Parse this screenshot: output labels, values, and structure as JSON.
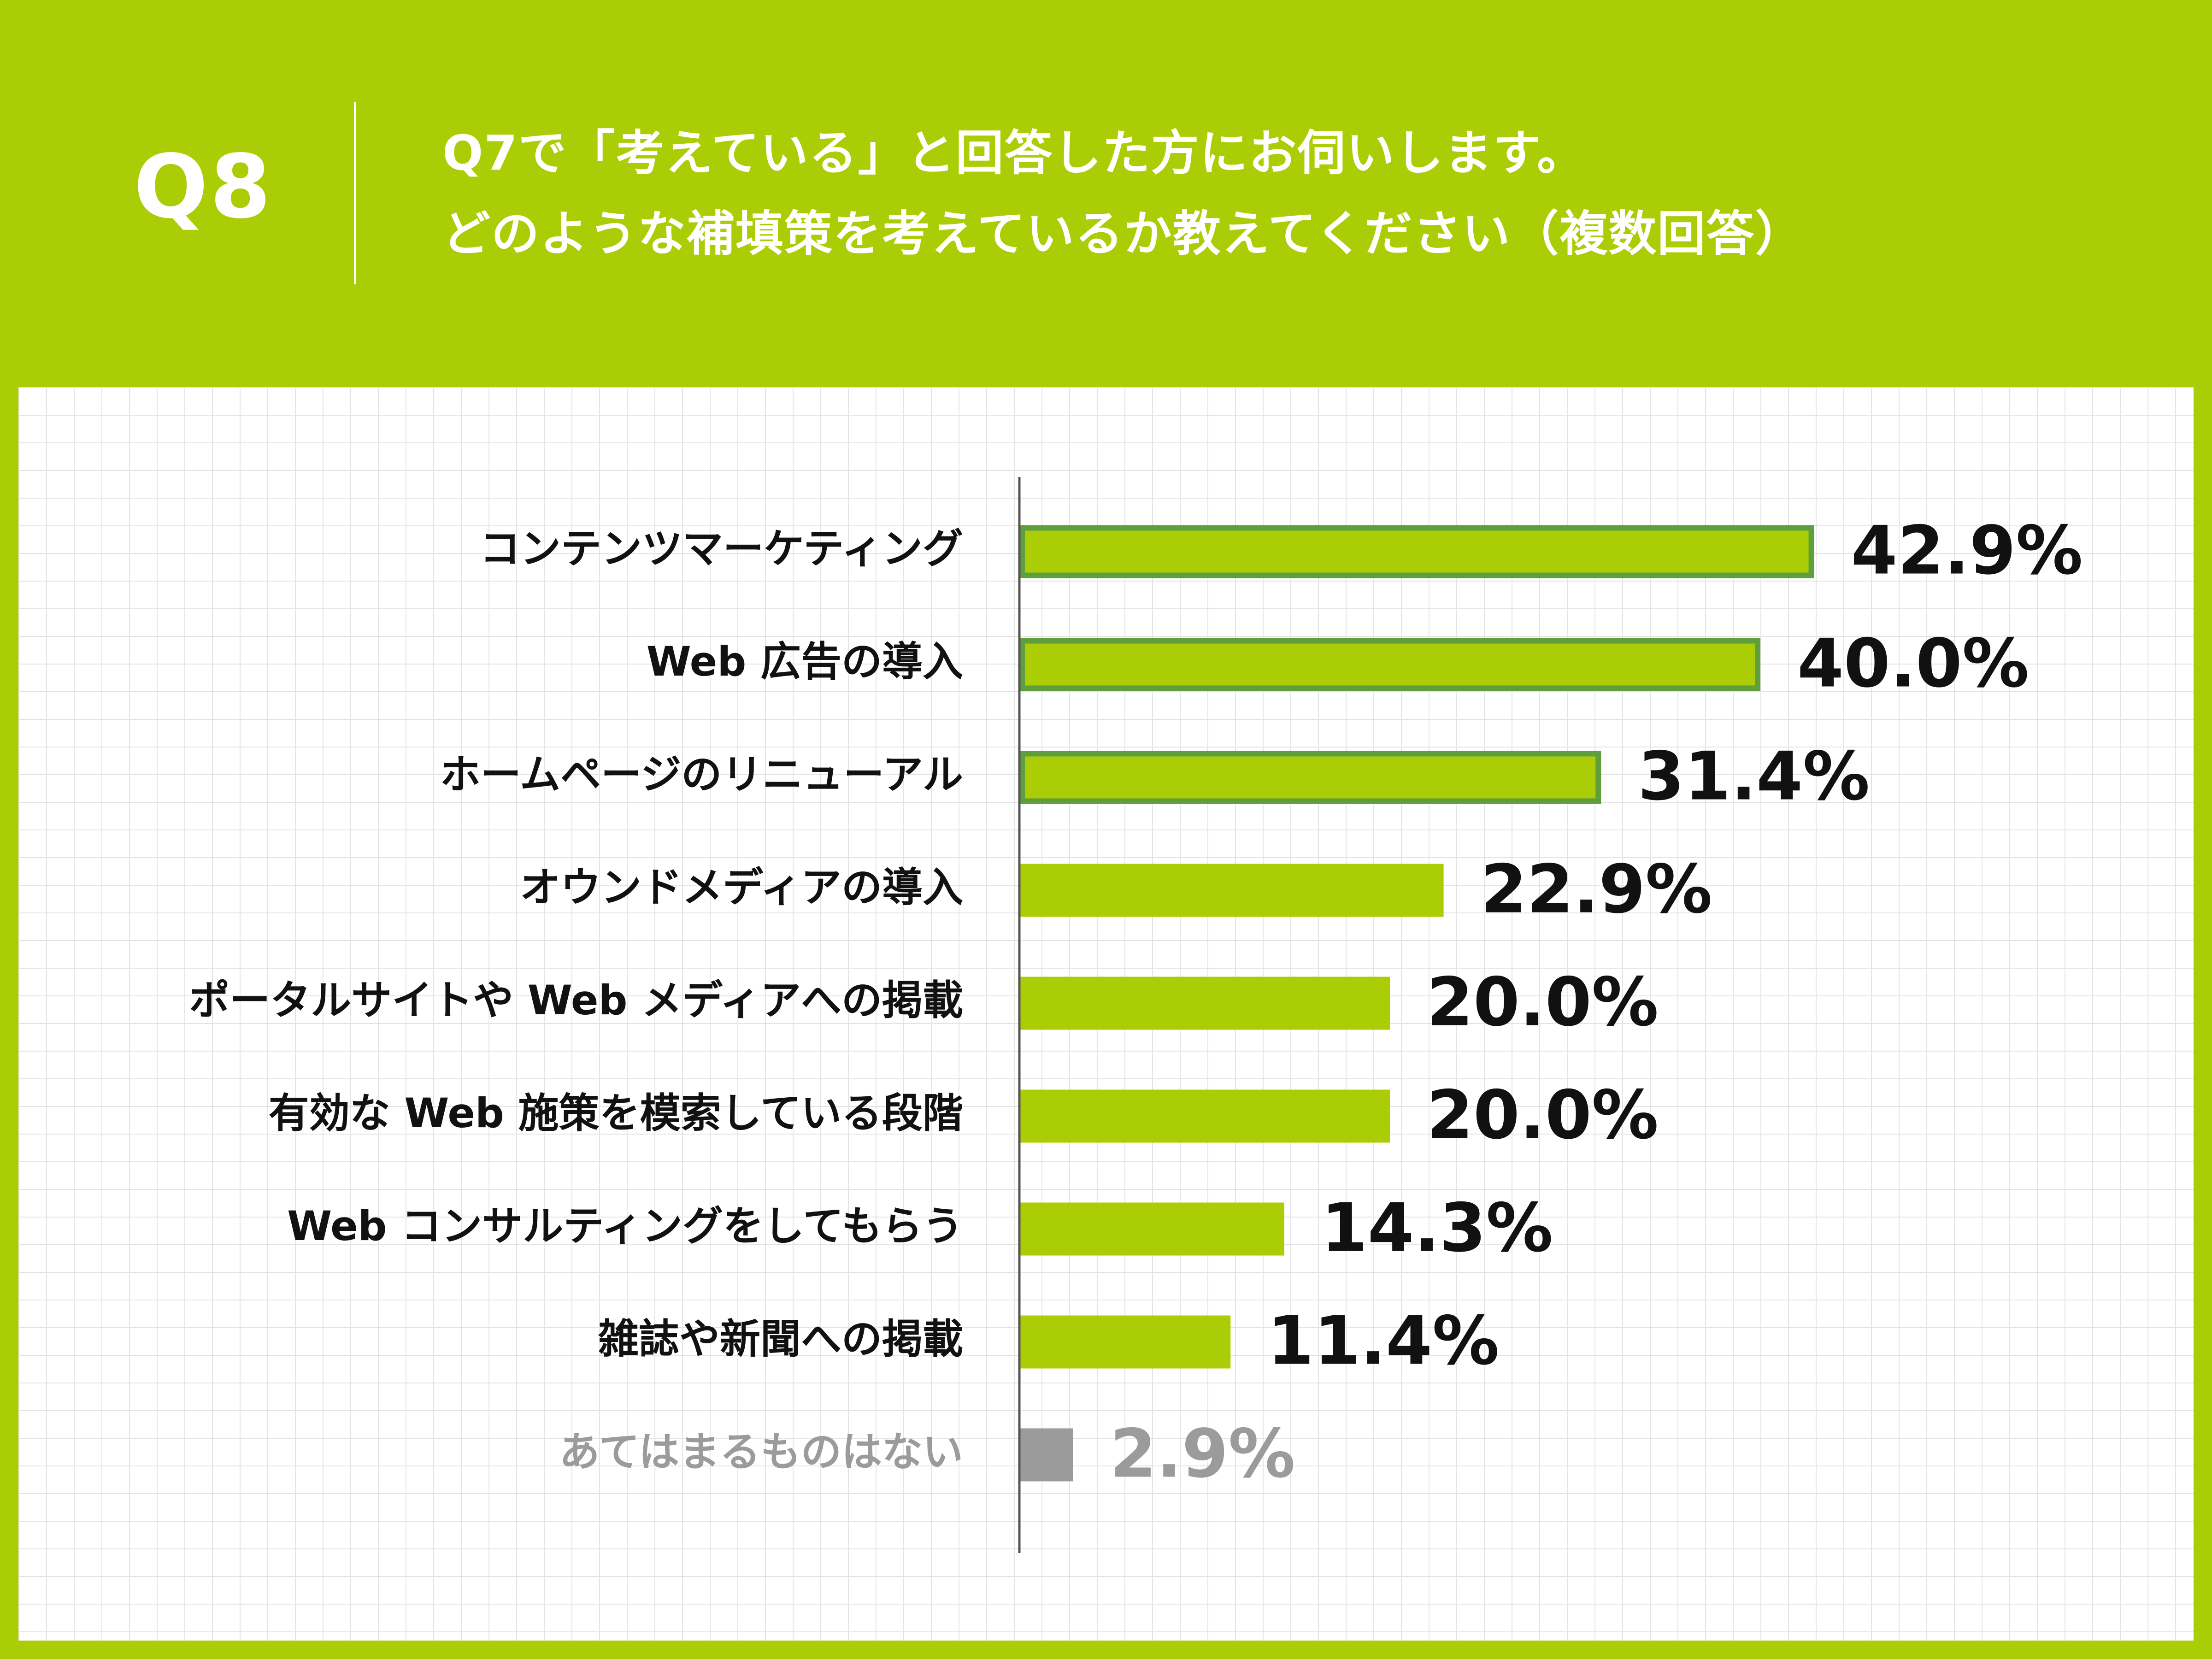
{
  "header": {
    "question_number": "Q8",
    "question_line1": "Q7で「考えている」と回答した方にお伺いします。",
    "question_line2": "どのような補填策を考えているか教えてください（複数回答）"
  },
  "colors": {
    "background": "#abcd05",
    "bar_fill": "#abcd05",
    "bar_highlight_border": "#5e9e3c",
    "bar_muted": "#9b9b9b",
    "text": "#111111",
    "text_muted": "#9b9b9b"
  },
  "chart_data": {
    "type": "bar",
    "orientation": "horizontal",
    "unit": "%",
    "xlim": [
      0,
      50
    ],
    "grid": true,
    "categories": [
      "コンテンツマーケティング",
      "Web 広告の導入",
      "ホームページのリニューアル",
      "オウンドメディアの導入",
      "ポータルサイトや Web メディアへの掲載",
      "有効な Web 施策を模索している段階",
      "Web コンサルティングをしてもらう",
      "雑誌や新聞への掲載",
      "あてはまるものはない"
    ],
    "values": [
      42.9,
      40.0,
      31.4,
      22.9,
      20.0,
      20.0,
      14.3,
      11.4,
      2.9
    ],
    "value_labels": [
      "42.9%",
      "40.0%",
      "31.4%",
      "22.9%",
      "20.0%",
      "20.0%",
      "14.3%",
      "11.4%",
      "2.9%"
    ],
    "highlighted_top": 3,
    "muted_last": true
  }
}
